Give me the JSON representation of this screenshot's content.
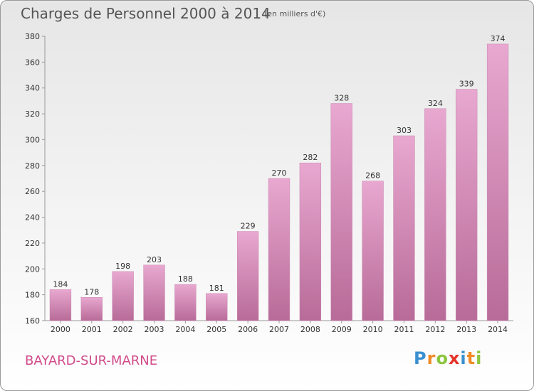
{
  "title": "Charges de Personnel 2000 à 2014",
  "subtitle": "(en milliers d'€)",
  "location": "BAYARD-SUR-MARNE",
  "logo": {
    "text": "Proxiti",
    "letters": [
      {
        "char": "P",
        "color": "#3a8fd0"
      },
      {
        "char": "r",
        "color": "#f08a24"
      },
      {
        "char": "o",
        "color": "#8cc63f"
      },
      {
        "char": "x",
        "color": "#e6332a"
      },
      {
        "char": "i",
        "color": "#3a8fd0"
      },
      {
        "char": "t",
        "color": "#f08a24"
      },
      {
        "char": "i",
        "color": "#8cc63f"
      }
    ]
  },
  "colors": {
    "bar_light": "#e8a8d0",
    "bar_dark": "#b86b98",
    "title": "#555555",
    "location": "#d04a8a"
  },
  "chart_data": {
    "type": "bar",
    "title": "Charges de Personnel 2000 à 2014",
    "subtitle": "(en milliers d'€)",
    "categories": [
      "2000",
      "2001",
      "2002",
      "2003",
      "2004",
      "2005",
      "2006",
      "2007",
      "2008",
      "2009",
      "2010",
      "2011",
      "2012",
      "2013",
      "2014"
    ],
    "values": [
      184,
      178,
      198,
      203,
      188,
      181,
      229,
      270,
      282,
      328,
      268,
      303,
      324,
      339,
      374
    ],
    "xlabel": "",
    "ylabel": "",
    "ylim": [
      160,
      380
    ],
    "yticks": [
      160,
      180,
      200,
      220,
      240,
      260,
      280,
      300,
      320,
      340,
      360,
      380
    ],
    "grid": false,
    "legend": "none"
  }
}
